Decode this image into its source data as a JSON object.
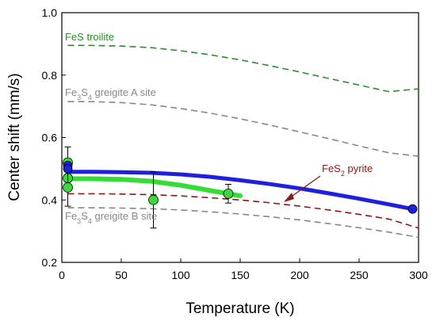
{
  "chart_data": {
    "type": "line",
    "xlabel": "Temperature (K)",
    "ylabel": "Center shift (mm/s)",
    "xlim": [
      0,
      300
    ],
    "ylim": [
      0.2,
      1.0
    ],
    "xticks": [
      0,
      50,
      100,
      150,
      200,
      250,
      300
    ],
    "yticks": [
      0.2,
      0.4,
      0.6,
      0.8,
      1.0
    ],
    "xtick_labels": [
      "0",
      "50",
      "100",
      "150",
      "200",
      "250",
      "300"
    ],
    "ytick_labels": [
      "0.2",
      "0.4",
      "0.6",
      "0.8",
      "1.0"
    ],
    "grid": false,
    "legend": "none",
    "series": [
      {
        "style": "dashed",
        "color": "#2e8b2e",
        "x": [
          5,
          25,
          50,
          75,
          100,
          125,
          150,
          175,
          200,
          225,
          250,
          275,
          300
        ],
        "y": [
          0.895,
          0.895,
          0.893,
          0.888,
          0.878,
          0.865,
          0.849,
          0.83,
          0.81,
          0.789,
          0.768,
          0.747,
          0.756
        ]
      },
      {
        "style": "dashed",
        "color": "#888888",
        "x": [
          5,
          25,
          50,
          75,
          100,
          125,
          150,
          175,
          200,
          225,
          250,
          275,
          300
        ],
        "y": [
          0.715,
          0.715,
          0.712,
          0.705,
          0.693,
          0.678,
          0.66,
          0.64,
          0.618,
          0.596,
          0.573,
          0.551,
          0.54
        ]
      },
      {
        "style": "dashed",
        "color": "#888888",
        "x": [
          5,
          25,
          50,
          75,
          100,
          125,
          150,
          175,
          200,
          225,
          250,
          275,
          300
        ],
        "y": [
          0.375,
          0.375,
          0.374,
          0.372,
          0.368,
          0.362,
          0.355,
          0.346,
          0.336,
          0.324,
          0.311,
          0.297,
          0.28
        ]
      },
      {
        "style": "dashed",
        "color": "#8b1a1a",
        "x": [
          5,
          25,
          50,
          75,
          100,
          125,
          150,
          175,
          200,
          225,
          250,
          275,
          300
        ],
        "y": [
          0.42,
          0.42,
          0.419,
          0.417,
          0.413,
          0.407,
          0.4,
          0.391,
          0.38,
          0.368,
          0.354,
          0.339,
          0.31
        ]
      },
      {
        "style": "fit",
        "color": "#1f1fe0",
        "x": [
          5,
          25,
          50,
          75,
          100,
          125,
          150,
          175,
          200,
          225,
          250,
          275,
          295
        ],
        "y": [
          0.49,
          0.49,
          0.489,
          0.487,
          0.482,
          0.474,
          0.463,
          0.451,
          0.437,
          0.421,
          0.404,
          0.386,
          0.371
        ]
      },
      {
        "style": "fit",
        "color": "#33dd33",
        "x": [
          5,
          25,
          50,
          75,
          100,
          125,
          150
        ],
        "y": [
          0.468,
          0.468,
          0.466,
          0.46,
          0.447,
          0.43,
          0.413
        ]
      }
    ],
    "points": [
      {
        "series": "green",
        "x": 5,
        "y": 0.52,
        "err": 0.05,
        "color": "#3ed63e"
      },
      {
        "series": "green",
        "x": 5,
        "y": 0.47,
        "err": null,
        "color": "#3ed63e"
      },
      {
        "series": "green",
        "x": 5,
        "y": 0.44,
        "err": 0.06,
        "color": "#3ed63e"
      },
      {
        "series": "green",
        "x": 77,
        "y": 0.4,
        "err": 0.09,
        "color": "#3ed63e"
      },
      {
        "series": "green",
        "x": 140,
        "y": 0.42,
        "err": 0.03,
        "color": "#3ed63e"
      },
      {
        "series": "blue",
        "x": 5,
        "y": 0.51,
        "err": null,
        "color": "#1f1fe0"
      },
      {
        "series": "blue",
        "x": 5,
        "y": 0.5,
        "err": null,
        "color": "#1f1fe0"
      },
      {
        "series": "blue",
        "x": 295,
        "y": 0.371,
        "err": null,
        "color": "#1f1fe0"
      }
    ],
    "annotations": [
      {
        "id": "troilite",
        "color": "#2e8b2e",
        "base": "FeS troilite",
        "parts": []
      },
      {
        "id": "greigite-a",
        "color": "#888888",
        "base": "",
        "parts": [
          [
            "Fe",
            ""
          ],
          [
            "3",
            "sub"
          ],
          [
            "S",
            ""
          ],
          [
            "4",
            "sub"
          ],
          [
            " greigite A site",
            ""
          ]
        ]
      },
      {
        "id": "greigite-b",
        "color": "#888888",
        "base": "",
        "parts": [
          [
            "Fe",
            ""
          ],
          [
            "3",
            "sub"
          ],
          [
            "S",
            ""
          ],
          [
            "4",
            "sub"
          ],
          [
            " greigite B site",
            ""
          ]
        ]
      },
      {
        "id": "pyrite",
        "color": "#8b1a1a",
        "base": "",
        "parts": [
          [
            "FeS",
            ""
          ],
          [
            "2",
            "sub"
          ],
          [
            " pyrite",
            ""
          ]
        ]
      }
    ]
  }
}
